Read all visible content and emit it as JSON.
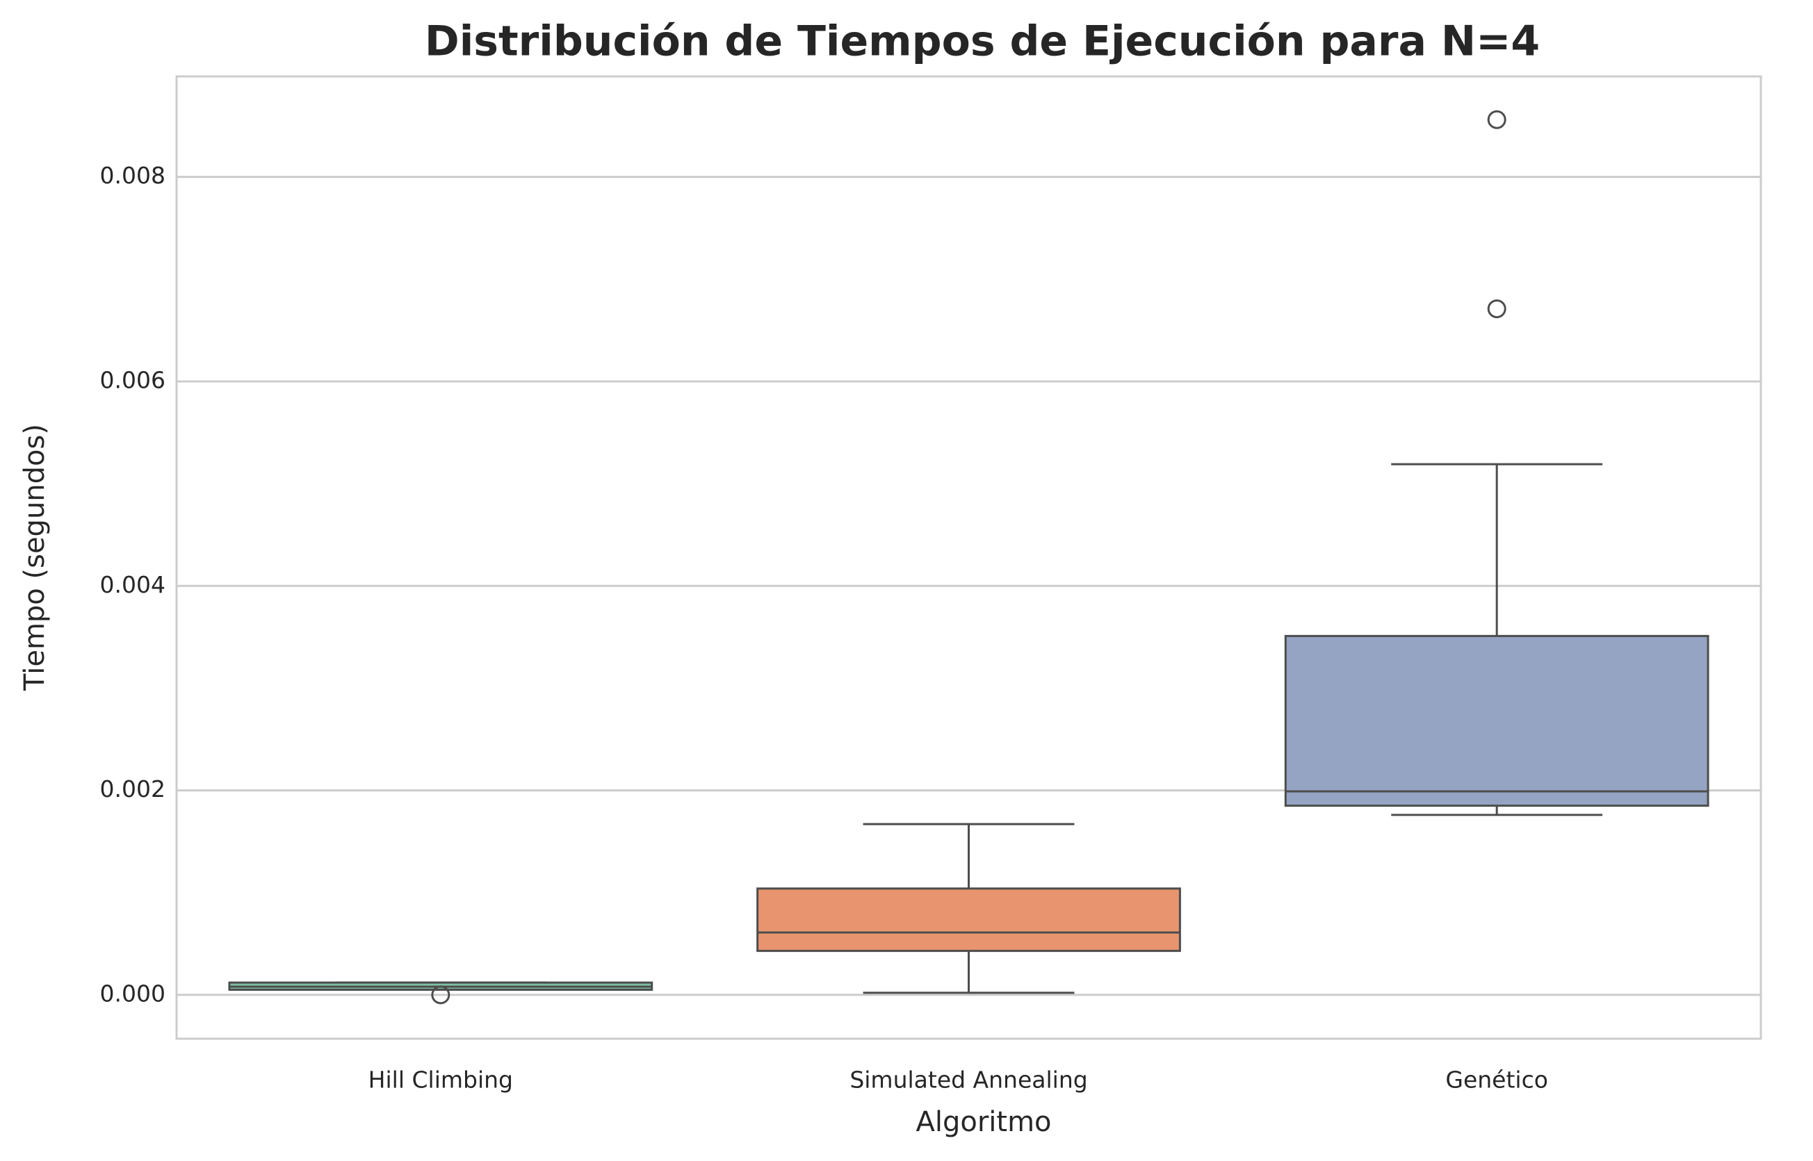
{
  "chart_data": {
    "type": "box",
    "title": "Distribución de Tiempos de Ejecución para N=4",
    "x_label": "Algoritmo",
    "y_label": "Tiempo (segundos)",
    "categories": [
      "Hill Climbing",
      "Simulated Annealing",
      "Genético"
    ],
    "colors": [
      "#7fbfa5",
      "#e8956f",
      "#95a4c3"
    ],
    "boxes": [
      {
        "whislo": 5e-05,
        "q1": 5e-05,
        "med": 8e-05,
        "q3": 0.00012,
        "whishi": 0.00012,
        "fliers": [
          0.0
        ]
      },
      {
        "whislo": 2e-05,
        "q1": 0.00043,
        "med": 0.00061,
        "q3": 0.00104,
        "whishi": 0.00167,
        "fliers": []
      },
      {
        "whislo": 0.00176,
        "q1": 0.00185,
        "med": 0.00199,
        "q3": 0.00351,
        "whishi": 0.00519,
        "fliers": [
          0.00671,
          0.00856
        ]
      }
    ],
    "ylim": [
      -0.000429,
      0.008983
    ],
    "yticks": [
      {
        "value": 0,
        "label": "0.000"
      },
      {
        "value": 0.002,
        "label": "0.002"
      },
      {
        "value": 0.004,
        "label": "0.004"
      },
      {
        "value": 0.006,
        "label": "0.006"
      },
      {
        "value": 0.008,
        "label": "0.008"
      }
    ],
    "grid": true
  }
}
